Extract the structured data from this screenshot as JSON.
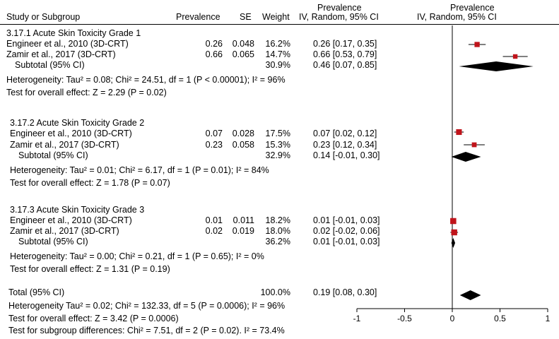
{
  "header": {
    "study": "Study or Subgroup",
    "prevalence": "Prevalence",
    "se": "SE",
    "weight": "Weight",
    "effect_title": "Prevalence",
    "effect_method": "IV, Random, 95% CI",
    "plot_title": "Prevalence",
    "plot_method": "IV, Random, 95% CI"
  },
  "groups": [
    {
      "title": "3.17.1 Acute Skin Toxicity Grade 1",
      "studies": [
        {
          "name": "Engineer et al., 2010 (3D-CRT)",
          "prev": "0.26",
          "se": "0.048",
          "weight": "16.2%",
          "ci": "0.26 [0.17, 0.35]"
        },
        {
          "name": "Zamir et al., 2017 (3D-CRT)",
          "prev": "0.66",
          "se": "0.065",
          "weight": "14.7%",
          "ci": "0.66 [0.53, 0.79]"
        }
      ],
      "subtotal": {
        "label": "Subtotal (95% CI)",
        "weight": "30.9%",
        "ci": "0.46 [0.07, 0.85]"
      },
      "heterogeneity": "Heterogeneity: Tau² = 0.08; Chi² = 24.51, df = 1 (P < 0.00001); I² = 96%",
      "overall": "Test for overall effect: Z = 2.29 (P = 0.02)"
    },
    {
      "title": "3.17.2 Acute Skin Toxicity Grade 2",
      "studies": [
        {
          "name": "Engineer et al., 2010 (3D-CRT)",
          "prev": "0.07",
          "se": "0.028",
          "weight": "17.5%",
          "ci": "0.07  [0.02, 0.12]"
        },
        {
          "name": "Zamir et al., 2017 (3D-CRT)",
          "prev": "0.23",
          "se": "0.058",
          "weight": "15.3%",
          "ci": "0.23  [0.12, 0.34]"
        }
      ],
      "subtotal": {
        "label": "Subtotal (95% CI)",
        "weight": "32.9%",
        "ci": "0.14 [-0.01, 0.30]"
      },
      "heterogeneity": "Heterogeneity: Tau² = 0.01; Chi² = 6.17, df = 1 (P = 0.01); I² = 84%",
      "overall": "Test for overall effect: Z = 1.78 (P = 0.07)"
    },
    {
      "title": "3.17.3 Acute Skin Toxicity Grade 3",
      "studies": [
        {
          "name": "Engineer et al., 2010 (3D-CRT)",
          "prev": "0.01",
          "se": "0.011",
          "weight": "18.2%",
          "ci": "0.01 [-0.01, 0.03]"
        },
        {
          "name": "Zamir et al., 2017 (3D-CRT)",
          "prev": "0.02",
          "se": "0.019",
          "weight": "18.0%",
          "ci": "0.02 [-0.02, 0.06]"
        }
      ],
      "subtotal": {
        "label": "Subtotal (95% CI)",
        "weight": "36.2%",
        "ci": "0.01 [-0.01, 0.03]"
      },
      "heterogeneity": "Heterogeneity: Tau² = 0.00; Chi² = 0.21, df = 1 (P = 0.65); I² = 0%",
      "overall": "Test for overall effect: Z = 1.31 (P = 0.19)"
    }
  ],
  "total": {
    "label": "Total (95% CI)",
    "weight": "100.0%",
    "ci": "0.19 [0.08, 0.30]",
    "heterogeneity": "Heterogeneity Tau² = 0.02; Chi² = 132.33, df = 5 (P = 0.0006); I² = 96%",
    "overall": "Test for overall effect: Z = 3.42 (P = 0.0006)",
    "subgroup": "Test for subgroup differences: Chi² = 7.51, df = 2 (P = 0.02). I² = 73.4%"
  },
  "chart_data": {
    "type": "forest",
    "xlim": [
      -1,
      1
    ],
    "ticks": [
      -1,
      -0.5,
      0,
      0.5,
      1
    ],
    "tick_labels": [
      "-1",
      "-0.5",
      "0",
      "0.5",
      "1"
    ],
    "null_line": 0,
    "colors": {
      "study_marker": "#c0141b",
      "line": "#000000",
      "diamond": "#000000"
    },
    "rows": [
      {
        "kind": "study",
        "est": 0.26,
        "lo": 0.17,
        "hi": 0.35,
        "weight": 16.2
      },
      {
        "kind": "study",
        "est": 0.66,
        "lo": 0.53,
        "hi": 0.79,
        "weight": 14.7
      },
      {
        "kind": "diamond",
        "est": 0.46,
        "lo": 0.07,
        "hi": 0.85
      },
      {
        "kind": "study",
        "est": 0.07,
        "lo": 0.02,
        "hi": 0.12,
        "weight": 17.5
      },
      {
        "kind": "study",
        "est": 0.23,
        "lo": 0.12,
        "hi": 0.34,
        "weight": 15.3
      },
      {
        "kind": "diamond",
        "est": 0.14,
        "lo": -0.01,
        "hi": 0.3
      },
      {
        "kind": "study",
        "est": 0.01,
        "lo": -0.01,
        "hi": 0.03,
        "weight": 18.2
      },
      {
        "kind": "study",
        "est": 0.02,
        "lo": -0.02,
        "hi": 0.06,
        "weight": 18.0
      },
      {
        "kind": "diamond",
        "est": 0.01,
        "lo": -0.01,
        "hi": 0.03
      },
      {
        "kind": "diamond",
        "est": 0.19,
        "lo": 0.08,
        "hi": 0.3
      }
    ]
  }
}
